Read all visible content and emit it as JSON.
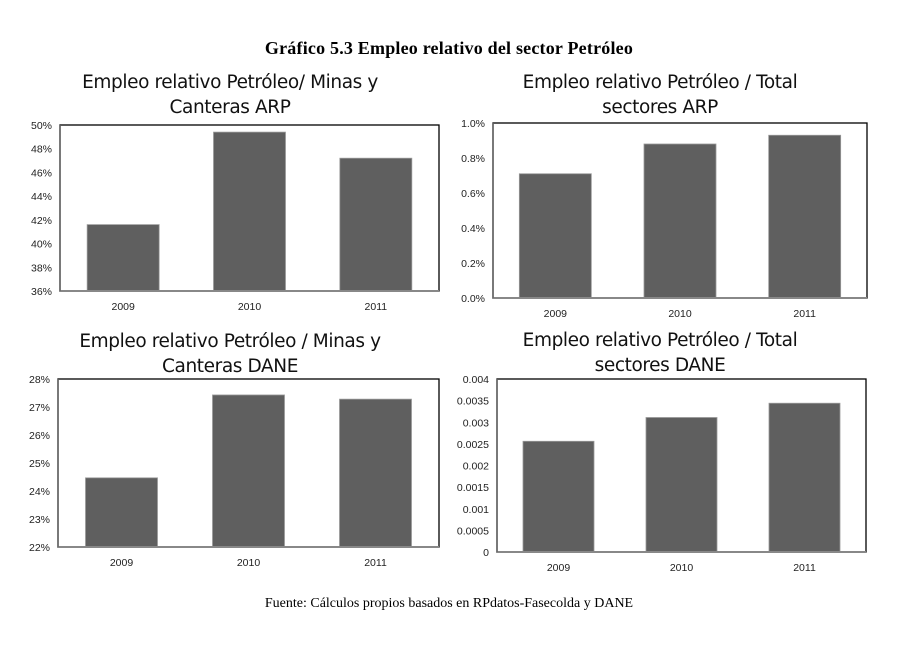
{
  "page": {
    "main_title": "Gráfico 5.3 Empleo relativo del sector Petróleo",
    "footer": "Fuente: Cálculos propios basados en RPdatos-Fasecolda y DANE",
    "bar_color": "#5f5f5f"
  },
  "chart_data": [
    {
      "type": "bar",
      "title_lines": [
        "Empleo relativo Petróleo/ Minas y",
        "Canteras ARP"
      ],
      "title": "Empleo relativo Petróleo/ Minas y Canteras ARP",
      "categories": [
        "2009",
        "2010",
        "2011"
      ],
      "values": [
        41.6,
        49.4,
        47.2
      ],
      "unit": "%",
      "yticks": [
        "36%",
        "38%",
        "40%",
        "42%",
        "44%",
        "46%",
        "48%",
        "50%"
      ],
      "ylim": [
        36,
        50
      ],
      "xlabel": "",
      "ylabel": "",
      "grid": false,
      "legend": "none"
    },
    {
      "type": "bar",
      "title_lines": [
        "Empleo relativo Petróleo / Total",
        "sectores ARP"
      ],
      "title": "Empleo relativo Petróleo / Total sectores ARP",
      "categories": [
        "2009",
        "2010",
        "2011"
      ],
      "values": [
        0.71,
        0.88,
        0.93
      ],
      "unit": "%",
      "yticks": [
        "0.0%",
        "0.2%",
        "0.4%",
        "0.6%",
        "0.8%",
        "1.0%"
      ],
      "ylim": [
        0,
        1.0
      ],
      "xlabel": "",
      "ylabel": "",
      "grid": false,
      "legend": "none"
    },
    {
      "type": "bar",
      "title_lines": [
        "Empleo relativo Petróleo / Minas y",
        "Canteras DANE"
      ],
      "title": "Empleo relativo Petróleo / Minas y Canteras DANE",
      "categories": [
        "2009",
        "2010",
        "2011"
      ],
      "values": [
        24.47,
        27.43,
        27.28
      ],
      "unit": "%",
      "yticks": [
        "22%",
        "23%",
        "24%",
        "25%",
        "26%",
        "27%",
        "28%"
      ],
      "ylim": [
        22,
        28
      ],
      "xlabel": "",
      "ylabel": "",
      "grid": false,
      "legend": "none"
    },
    {
      "type": "bar",
      "title_lines": [
        "Empleo relativo Petróleo / Total",
        "sectores DANE"
      ],
      "title": "Empleo relativo Petróleo / Total sectores DANE",
      "categories": [
        "2009",
        "2010",
        "2011"
      ],
      "values": [
        0.00256,
        0.00311,
        0.00344
      ],
      "unit": "",
      "yticks": [
        "0",
        "0.0005",
        "0.001",
        "0.0015",
        "0.002",
        "0.0025",
        "0.003",
        "0.0035",
        "0.004"
      ],
      "ylim": [
        0,
        0.004
      ],
      "xlabel": "",
      "ylabel": "",
      "grid": false,
      "legend": "none"
    }
  ]
}
